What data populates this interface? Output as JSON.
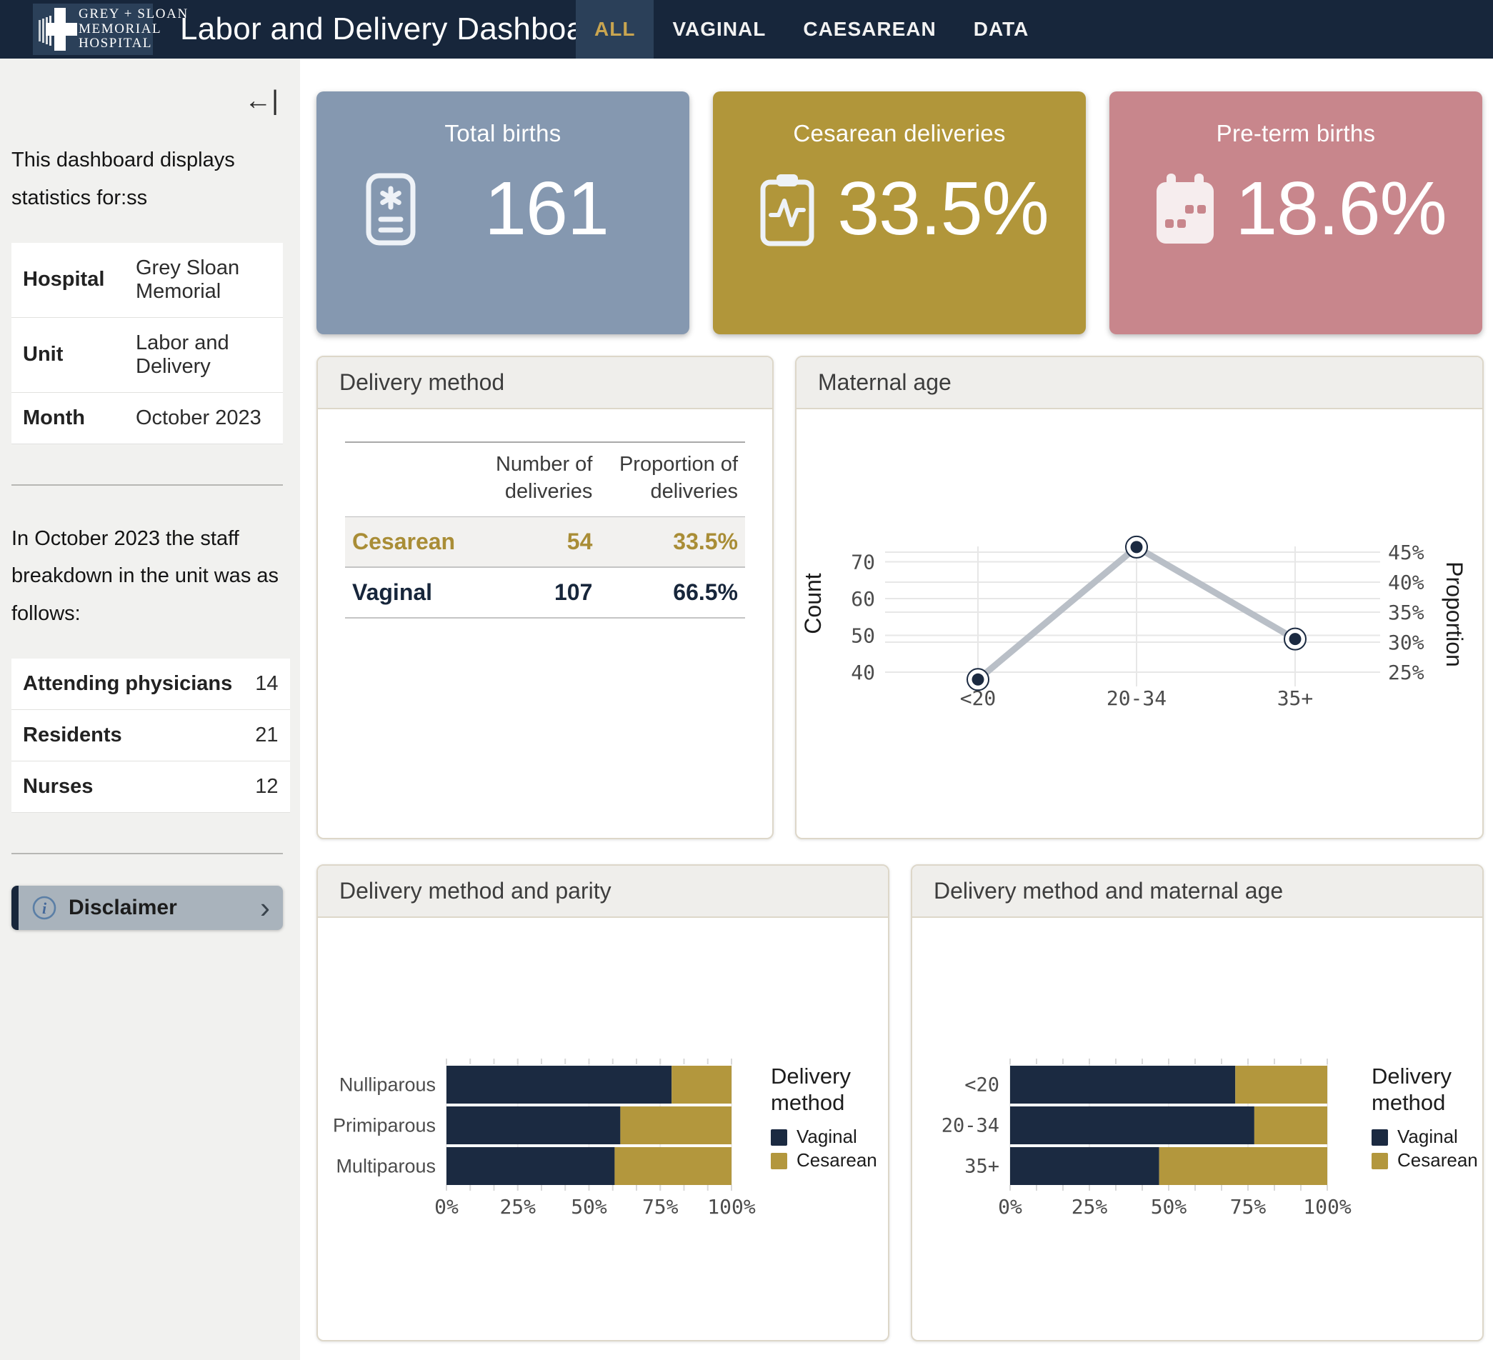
{
  "theme": {
    "navy_nav": "#17263b",
    "navy_dark": "#1b2a41",
    "gold": "#b3973d",
    "gold_text": "#c9a550",
    "tab_active_bg": "#2b4059",
    "sidebar_bg": "#f1f1ef",
    "panel_header_bg": "#efeeeb",
    "panel_border": "#ddd7c9",
    "grid_color": "#e7e7e7",
    "line_color": "#b9bfc7"
  },
  "nav": {
    "logo": {
      "line1": "GREY + SLOAN",
      "line2": "MEMORIAL",
      "line3": "HOSPITAL"
    },
    "title": "Labor and Delivery Dashboard",
    "tabs": [
      {
        "label": "ALL",
        "active": true
      },
      {
        "label": "VAGINAL",
        "active": false
      },
      {
        "label": "CAESAREAN",
        "active": false
      },
      {
        "label": "DATA",
        "active": false
      }
    ]
  },
  "sidebar": {
    "collapse_glyph": "←|",
    "intro": "This dashboard displays statistics for:ss",
    "info_rows": [
      {
        "label": "Hospital",
        "value": "Grey Sloan Memorial"
      },
      {
        "label": "Unit",
        "value": "Labor and Delivery"
      },
      {
        "label": "Month",
        "value": "October 2023"
      }
    ],
    "staff_intro": "In October 2023 the staff breakdown in the unit was as follows:",
    "staff_rows": [
      {
        "label": "Attending physicians",
        "value": "14"
      },
      {
        "label": "Residents",
        "value": "21"
      },
      {
        "label": "Nurses",
        "value": "12"
      }
    ],
    "disclaimer_label": "Disclaimer",
    "disclaimer_chevron": "›"
  },
  "kpis": [
    {
      "label": "Total births",
      "value": "161",
      "color": "#8598b0",
      "icon": "report-icon"
    },
    {
      "label": "Cesarean deliveries",
      "value": "33.5%",
      "color": "#b1963a",
      "icon": "clipboard-pulse-icon"
    },
    {
      "label": "Pre-term births",
      "value": "18.6%",
      "color": "#c8868c",
      "icon": "calendar-icon"
    }
  ],
  "panels": {
    "delivery_method": "Delivery method",
    "maternal_age": "Maternal age",
    "parity": "Delivery method and parity",
    "age_bars": "Delivery method and maternal age"
  },
  "chart_data": [
    {
      "type": "table",
      "title": "Delivery method",
      "columns": [
        "",
        "Number of deliveries",
        "Proportion of deliveries"
      ],
      "rows": [
        {
          "label": "Cesarean",
          "number": "54",
          "proportion": "33.5%",
          "color": "#a98d36"
        },
        {
          "label": "Vaginal",
          "number": "107",
          "proportion": "66.5%",
          "color": "#17263b"
        }
      ]
    },
    {
      "type": "line",
      "title": "Maternal age",
      "categories": [
        "<20",
        "20-34",
        "35+"
      ],
      "values": [
        38,
        74,
        49
      ],
      "total": 161,
      "xlabel": "",
      "ylabel_left": "Count",
      "ylabel_right": "Proportion",
      "yticks_left": [
        40,
        50,
        60,
        70
      ],
      "yticks_right_pct": [
        25,
        30,
        35,
        40,
        45
      ],
      "ylim_left": [
        36,
        76
      ],
      "grid": true,
      "legend_position": "none"
    },
    {
      "type": "bar",
      "title": "Delivery method and parity",
      "orientation": "horizontal-stacked-percent",
      "categories": [
        "Nulliparous",
        "Primiparous",
        "Multiparous"
      ],
      "series": [
        {
          "name": "Vaginal",
          "values_pct": [
            79,
            61,
            59
          ],
          "color": "#1b2a41"
        },
        {
          "name": "Cesarean",
          "values_pct": [
            21,
            39,
            41
          ],
          "color": "#b3973d"
        }
      ],
      "xticks_pct": [
        0,
        25,
        50,
        75,
        100
      ],
      "xlim": [
        0,
        100
      ],
      "legend_title": "Delivery method",
      "legend_position": "right"
    },
    {
      "type": "bar",
      "title": "Delivery method and maternal age",
      "orientation": "horizontal-stacked-percent",
      "categories": [
        "<20",
        "20-34",
        "35+"
      ],
      "series": [
        {
          "name": "Vaginal",
          "values_pct": [
            71,
            77,
            47
          ],
          "color": "#1b2a41"
        },
        {
          "name": "Cesarean",
          "values_pct": [
            29,
            23,
            53
          ],
          "color": "#b3973d"
        }
      ],
      "xticks_pct": [
        0,
        25,
        50,
        75,
        100
      ],
      "xlim": [
        0,
        100
      ],
      "legend_title": "Delivery method",
      "legend_position": "right"
    }
  ]
}
